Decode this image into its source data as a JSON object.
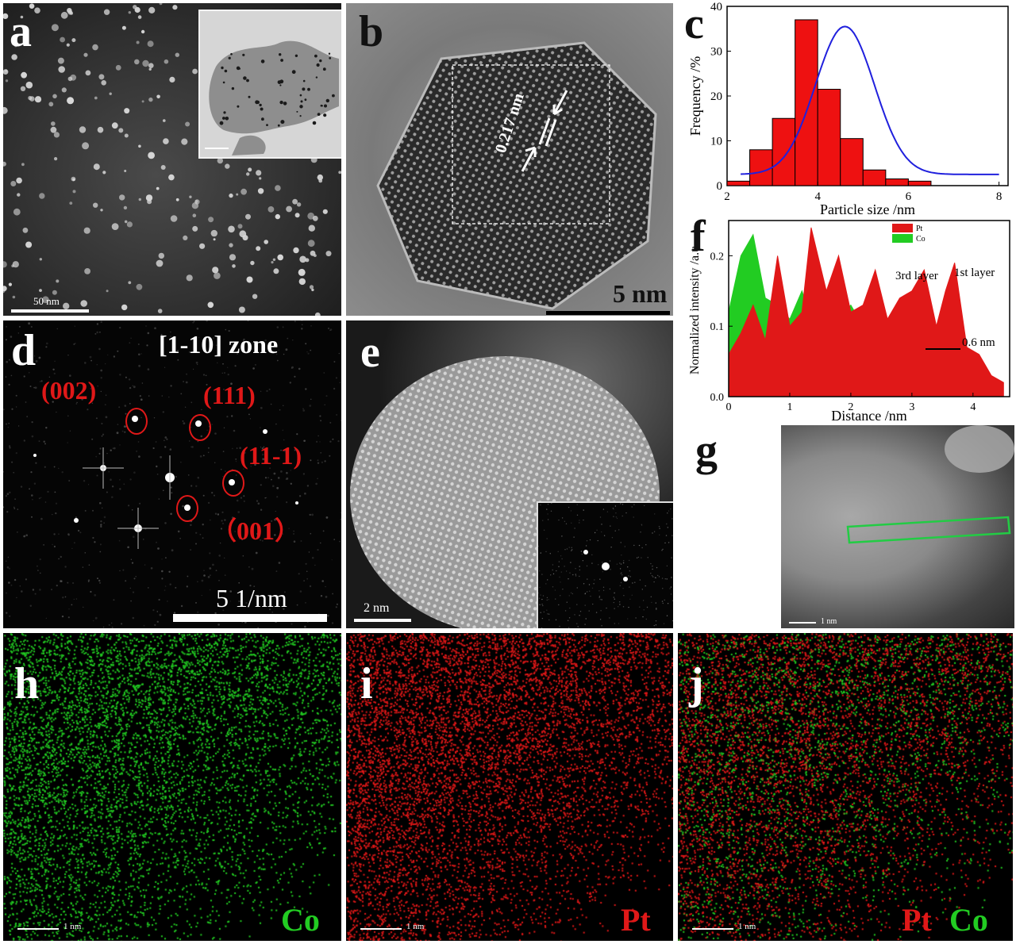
{
  "panels": {
    "a": {
      "letter": "a",
      "scale": "50 nm"
    },
    "b": {
      "letter": "b",
      "scale": "5 nm",
      "d_spacing": "0.217 nm"
    },
    "c": {
      "letter": "c"
    },
    "d": {
      "letter": "d",
      "zone": "[1-10] zone",
      "scale": "5 1/nm",
      "spots": [
        "(002)",
        "(111)",
        "(11-1)",
        "（001）"
      ]
    },
    "e": {
      "letter": "e",
      "scale": "2 nm"
    },
    "f": {
      "letter": "f",
      "layer3": "3rd layer",
      "layer1": "1st layer",
      "dist": "0.6 nm"
    },
    "g": {
      "letter": "g",
      "scale": "1 nm"
    },
    "h": {
      "letter": "h",
      "scale": "1 nm",
      "element": "Co"
    },
    "i": {
      "letter": "i",
      "scale": "1 nm",
      "element": "Pt"
    },
    "j": {
      "letter": "j",
      "scale": "1 nm",
      "element1": "Pt",
      "element2": "Co"
    }
  },
  "colors": {
    "pt": "#e01818",
    "co": "#22cc22",
    "fit": "#2020dd"
  },
  "chart_data": [
    {
      "type": "bar",
      "panel": "c",
      "xlabel": "Particle size /nm",
      "ylabel": "Frequency /%",
      "xlim": [
        2,
        8.2
      ],
      "ylim": [
        0,
        40
      ],
      "xticks": [
        2,
        4,
        6,
        8
      ],
      "yticks": [
        0,
        10,
        20,
        30,
        40
      ],
      "bin_width": 0.5,
      "bin_centers": [
        2.25,
        2.75,
        3.25,
        3.75,
        4.25,
        4.75,
        5.25,
        5.75,
        6.25,
        6.75,
        7.25,
        7.75
      ],
      "values": [
        1,
        8,
        15,
        37,
        21.5,
        10.5,
        3.5,
        1.5,
        1,
        0,
        0,
        0
      ],
      "fit": {
        "type": "gaussian",
        "center": 4.6,
        "peak": 35.5,
        "sigma": 0.65,
        "baseline": 2.5,
        "color": "blue"
      }
    },
    {
      "type": "area",
      "panel": "f",
      "xlabel": "Distance /nm",
      "ylabel": "Normalized intensity /a.u.",
      "xlim": [
        0,
        4.6
      ],
      "ylim": [
        0,
        0.25
      ],
      "xticks": [
        0,
        1,
        2,
        3,
        4
      ],
      "yticks": [
        0.0,
        0.1,
        0.2
      ],
      "legend": "top-right",
      "series": [
        {
          "name": "Pt",
          "color": "red",
          "x": [
            0.0,
            0.2,
            0.4,
            0.6,
            0.8,
            1.0,
            1.2,
            1.35,
            1.6,
            1.8,
            2.0,
            2.2,
            2.4,
            2.6,
            2.8,
            3.0,
            3.2,
            3.4,
            3.55,
            3.7,
            3.9,
            4.1,
            4.3,
            4.5
          ],
          "y": [
            0.06,
            0.09,
            0.13,
            0.08,
            0.2,
            0.1,
            0.12,
            0.24,
            0.15,
            0.2,
            0.12,
            0.13,
            0.18,
            0.11,
            0.14,
            0.15,
            0.18,
            0.1,
            0.15,
            0.19,
            0.07,
            0.06,
            0.03,
            0.02
          ]
        },
        {
          "name": "Co",
          "color": "green",
          "x": [
            0.0,
            0.2,
            0.4,
            0.6,
            0.8,
            1.0,
            1.2,
            1.4,
            1.6,
            1.8,
            2.0,
            2.2,
            2.4,
            2.6,
            2.8,
            3.0,
            3.2,
            3.4,
            3.6,
            3.8,
            4.0,
            4.2,
            4.4
          ],
          "y": [
            0.12,
            0.2,
            0.23,
            0.14,
            0.13,
            0.11,
            0.15,
            0.1,
            0.12,
            0.11,
            0.13,
            0.1,
            0.14,
            0.11,
            0.1,
            0.09,
            0.06,
            0.03,
            0.01,
            0.0,
            0.0,
            0.0,
            0.0
          ]
        }
      ],
      "annotations": [
        "3rd layer",
        "1st layer",
        "0.6 nm"
      ]
    }
  ]
}
